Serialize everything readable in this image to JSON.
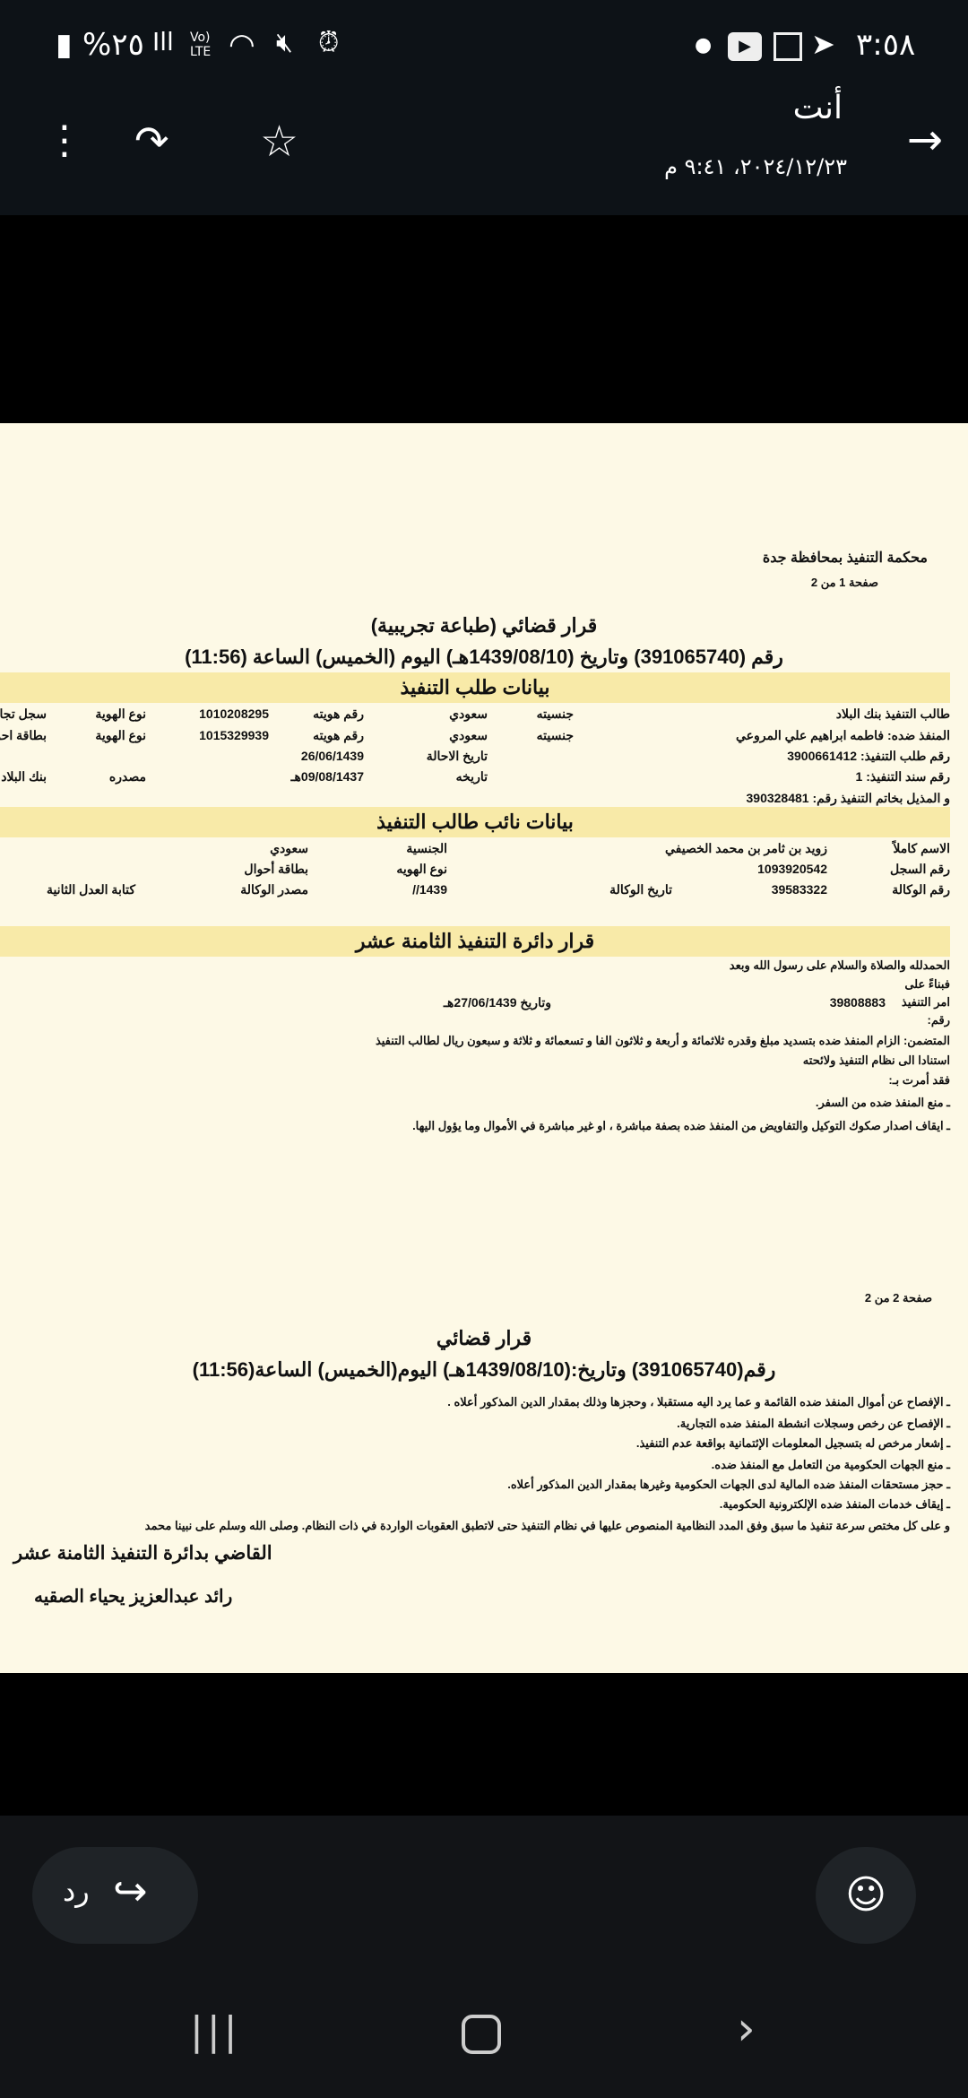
{
  "status_bar": {
    "time": "٣:٥٨",
    "battery": "%٢٥",
    "network": "Vo) LTE"
  },
  "header": {
    "sender": "أنت",
    "timestamp": "٢٠٢٤/١٢/٢٣، ٩:٤١ م"
  },
  "document": {
    "court": "محكمة التنفيذ بمحافظة جدة",
    "page1": "صفحة 1 من 2",
    "title1": "قرار قضائي  (طباعة تجريبية)",
    "number_line1": "رقم (391065740)  وتاريخ (1439/08/10هـ)  اليوم (الخميس)  الساعة (11:56)",
    "section1": "بيانات طلب التنفيذ",
    "s1_rows": [
      [
        "طالب التنفيذ بنك البلاد",
        "جنسيته",
        "سعودي",
        "رقم هويته",
        "1010208295",
        "نوع الهوية",
        "سجل تجاري"
      ],
      [
        "المنفذ ضده: فاطمه ابراهيم علي المروعي",
        "جنسيته",
        "سعودي",
        "رقم هويته",
        "1015329939",
        "نوع الهوية",
        "بطاقة احوال"
      ],
      [
        "رقم طلب التنفيذ: 3900661412",
        "تاريخ الاحالة",
        "26/06/1439"
      ],
      [
        "رقم سند التنفيذ: 1",
        "تاريخه",
        "09/08/1437هـ",
        "مصدره",
        "بنك البلاد"
      ],
      [
        "و المذيل بخاتم التنفيذ رقم:  390328481"
      ]
    ],
    "section2": "بيانات نائب طالب التنفيذ",
    "s2_rows": [
      [
        "الاسم كاملاً",
        "زويد بن ثامر بن محمد الخصيفي",
        "الجنسية",
        "سعودي"
      ],
      [
        "رقم السجل",
        "1093920542",
        "نوع الهويه",
        "بطاقة أحوال"
      ],
      [
        "رقم الوكالة",
        "39583322",
        "تاريخ الوكالة",
        "1439//",
        "مصدر الوكالة",
        "كتابة العدل الثانية"
      ]
    ],
    "section3": "قرار دائرة التنفيذ الثامنة عشر",
    "body1": [
      "الحمدلله والصلاة والسلام على رسول الله وبعد",
      "فبناءً على",
      "رقم:",
      "المتضمن: الزام المنفذ ضده بتسديد مبلغ وقدره ثلاثمائة و أربعة و ثلاثون الفا و تسعمائة و ثلاثة و سبعون ريال لطالب التنفيذ",
      "استنادا الى نظام التنفيذ ولائحته",
      "فقد أمرت بـ:",
      "ـ منع المنفذ ضده من السفر.",
      "ـ  ايقاف اصدار صكوك التوكيل والتفاويض من المنفذ ضده بصفة مباشرة ، او غير مباشرة في الأموال وما يؤول اليها."
    ],
    "order_label": "امر التنفيذ",
    "order_no": "39808883",
    "order_date": "وتاريخ 27/06/1439هـ",
    "page2": "صفحة 2 من 2",
    "title2": "قرار قضائي",
    "number_line2": "رقم(391065740)  وتاريخ:(1439/08/10هـ)  اليوم(الخميس)  الساعة(11:56)",
    "body2": [
      "ـ الإفصاح عن أموال المنفذ ضده القائمة و عما يرد اليه مستقبلا ، وحجزها وذلك بمقدار الدين المذكور أعلاه .",
      "ـ الإفصاح عن رخص وسجلات انشطة المنفذ ضده التجارية.",
      "ـ إشعار مرخص له بتسجيل المعلومات الإئتمانية بواقعة عدم التنفيذ.",
      "ـ  منع الجهات الحكومية من التعامل مع المنفذ ضده.",
      "ـ حجز مستحقات المنفذ ضده المالية لدى الجهات الحكومية وغيرها بمقدار الدين المذكور أعلاه.",
      "ـ  إيقاف خدمات المنفذ ضده الإلكترونية الحكومية.",
      "و على كل مختص سرعة تنفيذ ما سبق وفق المدد النظامية المنصوص عليها في نظام التنفيذ حتى لاتطبق العقوبات الواردة في ذات النظام. وصلى الله وسلم على نبينا محمد"
    ],
    "judge_title": "القاضي بدائرة التنفيذ الثامنة عشر",
    "judge_name": "رائد عبدالعزيز يحياء الصقيه"
  },
  "bottom": {
    "reply_label": "رد"
  }
}
